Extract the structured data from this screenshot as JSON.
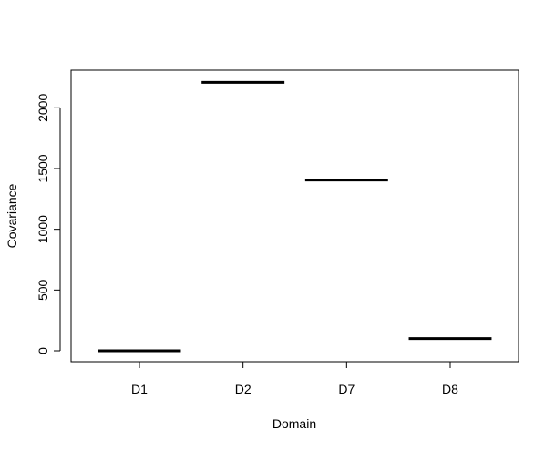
{
  "chart_data": {
    "type": "box",
    "title": "",
    "xlabel": "Domain",
    "ylabel": "Covariance",
    "categories": [
      "D1",
      "D2",
      "D7",
      "D8"
    ],
    "values": [
      0,
      2210,
      1405,
      100
    ],
    "ylim": [
      -90,
      2310
    ],
    "yticks": [
      0,
      500,
      1000,
      1500,
      2000
    ],
    "ytick_labels": [
      "0",
      "500",
      "1000",
      "1500",
      "2000"
    ],
    "grid": false,
    "legend": "none",
    "colors": {
      "median": "#000000",
      "axis": "#000000",
      "background": "#ffffff"
    }
  }
}
